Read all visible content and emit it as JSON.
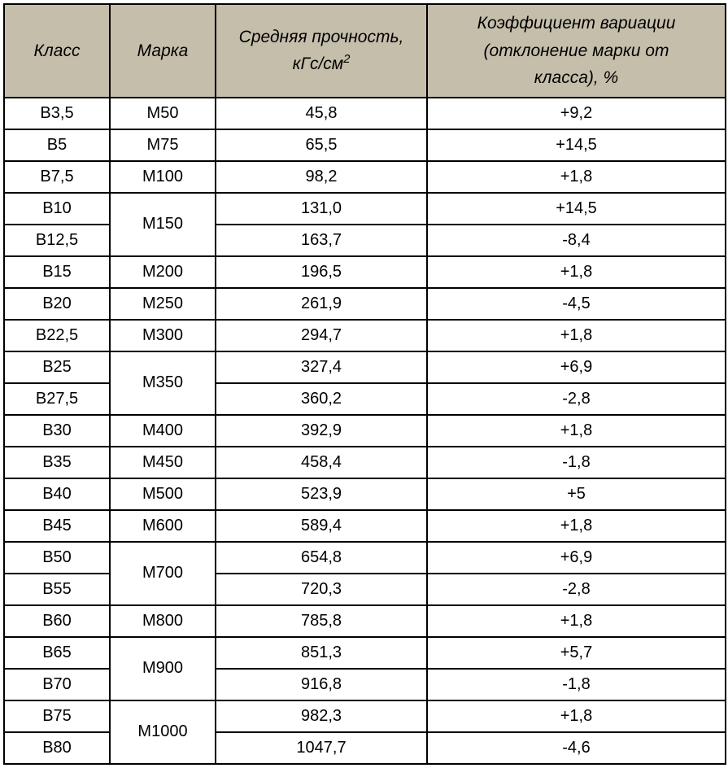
{
  "table": {
    "header_bg": "#c5beab",
    "border_color": "#000000",
    "font_family": "Arial, sans-serif",
    "header_font_style": "italic",
    "columns": {
      "class": "Класс",
      "mark": "Марка",
      "strength_line1": "Средняя прочность,",
      "strength_line2_prefix": "кГс/см",
      "strength_line2_sup": "2",
      "variation_line1": "Коэффициент вариации",
      "variation_line2": "(отклонение марки от",
      "variation_line3": "класса), %"
    },
    "rows": [
      {
        "class": "B3,5",
        "mark": "M50",
        "mark_rowspan": 1,
        "strength": "45,8",
        "variation": "+9,2"
      },
      {
        "class": "B5",
        "mark": "M75",
        "mark_rowspan": 1,
        "strength": "65,5",
        "variation": "+14,5"
      },
      {
        "class": "B7,5",
        "mark": "M100",
        "mark_rowspan": 1,
        "strength": "98,2",
        "variation": "+1,8"
      },
      {
        "class": "B10",
        "mark": "M150",
        "mark_rowspan": 2,
        "strength": "131,0",
        "variation": "+14,5"
      },
      {
        "class": "B12,5",
        "mark": null,
        "mark_rowspan": 0,
        "strength": "163,7",
        "variation": "-8,4"
      },
      {
        "class": "B15",
        "mark": "M200",
        "mark_rowspan": 1,
        "strength": "196,5",
        "variation": "+1,8"
      },
      {
        "class": "B20",
        "mark": "M250",
        "mark_rowspan": 1,
        "strength": "261,9",
        "variation": "-4,5"
      },
      {
        "class": "B22,5",
        "mark": "M300",
        "mark_rowspan": 1,
        "strength": "294,7",
        "variation": "+1,8"
      },
      {
        "class": "B25",
        "mark": "M350",
        "mark_rowspan": 2,
        "strength": "327,4",
        "variation": "+6,9"
      },
      {
        "class": "B27,5",
        "mark": null,
        "mark_rowspan": 0,
        "strength": "360,2",
        "variation": "-2,8"
      },
      {
        "class": "B30",
        "mark": "M400",
        "mark_rowspan": 1,
        "strength": "392,9",
        "variation": "+1,8"
      },
      {
        "class": "B35",
        "mark": "M450",
        "mark_rowspan": 1,
        "strength": "458,4",
        "variation": "-1,8"
      },
      {
        "class": "B40",
        "mark": "M500",
        "mark_rowspan": 1,
        "strength": "523,9",
        "variation": "+5"
      },
      {
        "class": "B45",
        "mark": "M600",
        "mark_rowspan": 1,
        "strength": "589,4",
        "variation": "+1,8"
      },
      {
        "class": "B50",
        "mark": "M700",
        "mark_rowspan": 2,
        "strength": "654,8",
        "variation": "+6,9"
      },
      {
        "class": "B55",
        "mark": null,
        "mark_rowspan": 0,
        "strength": "720,3",
        "variation": "-2,8"
      },
      {
        "class": "B60",
        "mark": "M800",
        "mark_rowspan": 1,
        "strength": "785,8",
        "variation": "+1,8"
      },
      {
        "class": "B65",
        "mark": "M900",
        "mark_rowspan": 2,
        "strength": "851,3",
        "variation": "+5,7"
      },
      {
        "class": "B70",
        "mark": null,
        "mark_rowspan": 0,
        "strength": "916,8",
        "variation": "-1,8"
      },
      {
        "class": "B75",
        "mark": "M1000",
        "mark_rowspan": 2,
        "strength": "982,3",
        "variation": "+1,8"
      },
      {
        "class": "B80",
        "mark": null,
        "mark_rowspan": 0,
        "strength": "1047,7",
        "variation": "-4,6"
      }
    ]
  }
}
